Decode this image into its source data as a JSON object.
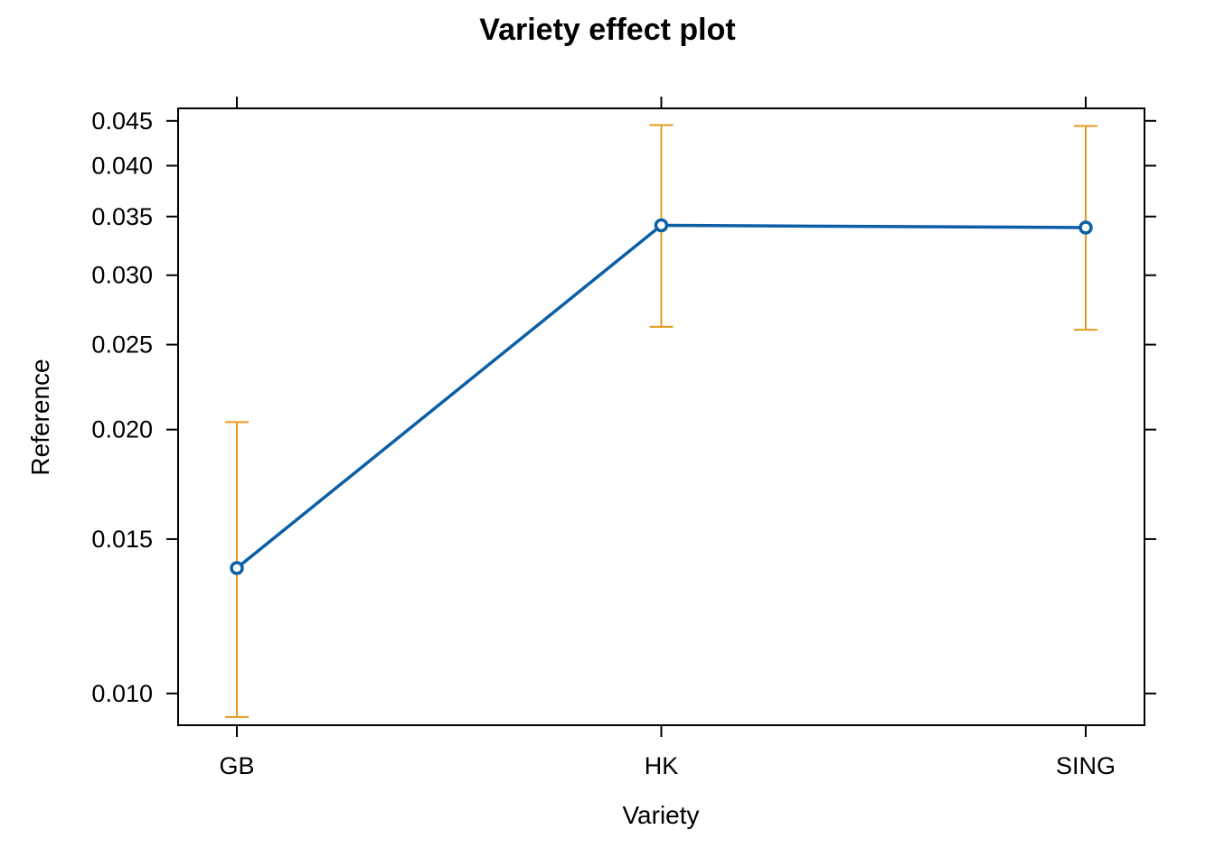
{
  "chart_data": {
    "type": "line",
    "title": "Variety effect plot",
    "xlabel": "Variety",
    "ylabel": "Reference",
    "y_scale": "log",
    "categories": [
      "GB",
      "HK",
      "SING"
    ],
    "series": [
      {
        "values": [
          0.0139,
          0.0342,
          0.034
        ],
        "lower": [
          0.0094,
          0.0262,
          0.026
        ],
        "upper": [
          0.0204,
          0.0445,
          0.0444
        ]
      }
    ],
    "y_ticks": [
      0.01,
      0.015,
      0.02,
      0.025,
      0.03,
      0.035,
      0.04,
      0.045
    ],
    "y_tick_labels": [
      "0.010",
      "0.015",
      "0.020",
      "0.025",
      "0.030",
      "0.035",
      "0.040",
      "0.045"
    ],
    "ylim": [
      0.0092,
      0.0465
    ],
    "grid": false,
    "colors": {
      "line": "#0b5fa5",
      "error_bar": "#e69a1c",
      "axis": "#000000"
    }
  }
}
